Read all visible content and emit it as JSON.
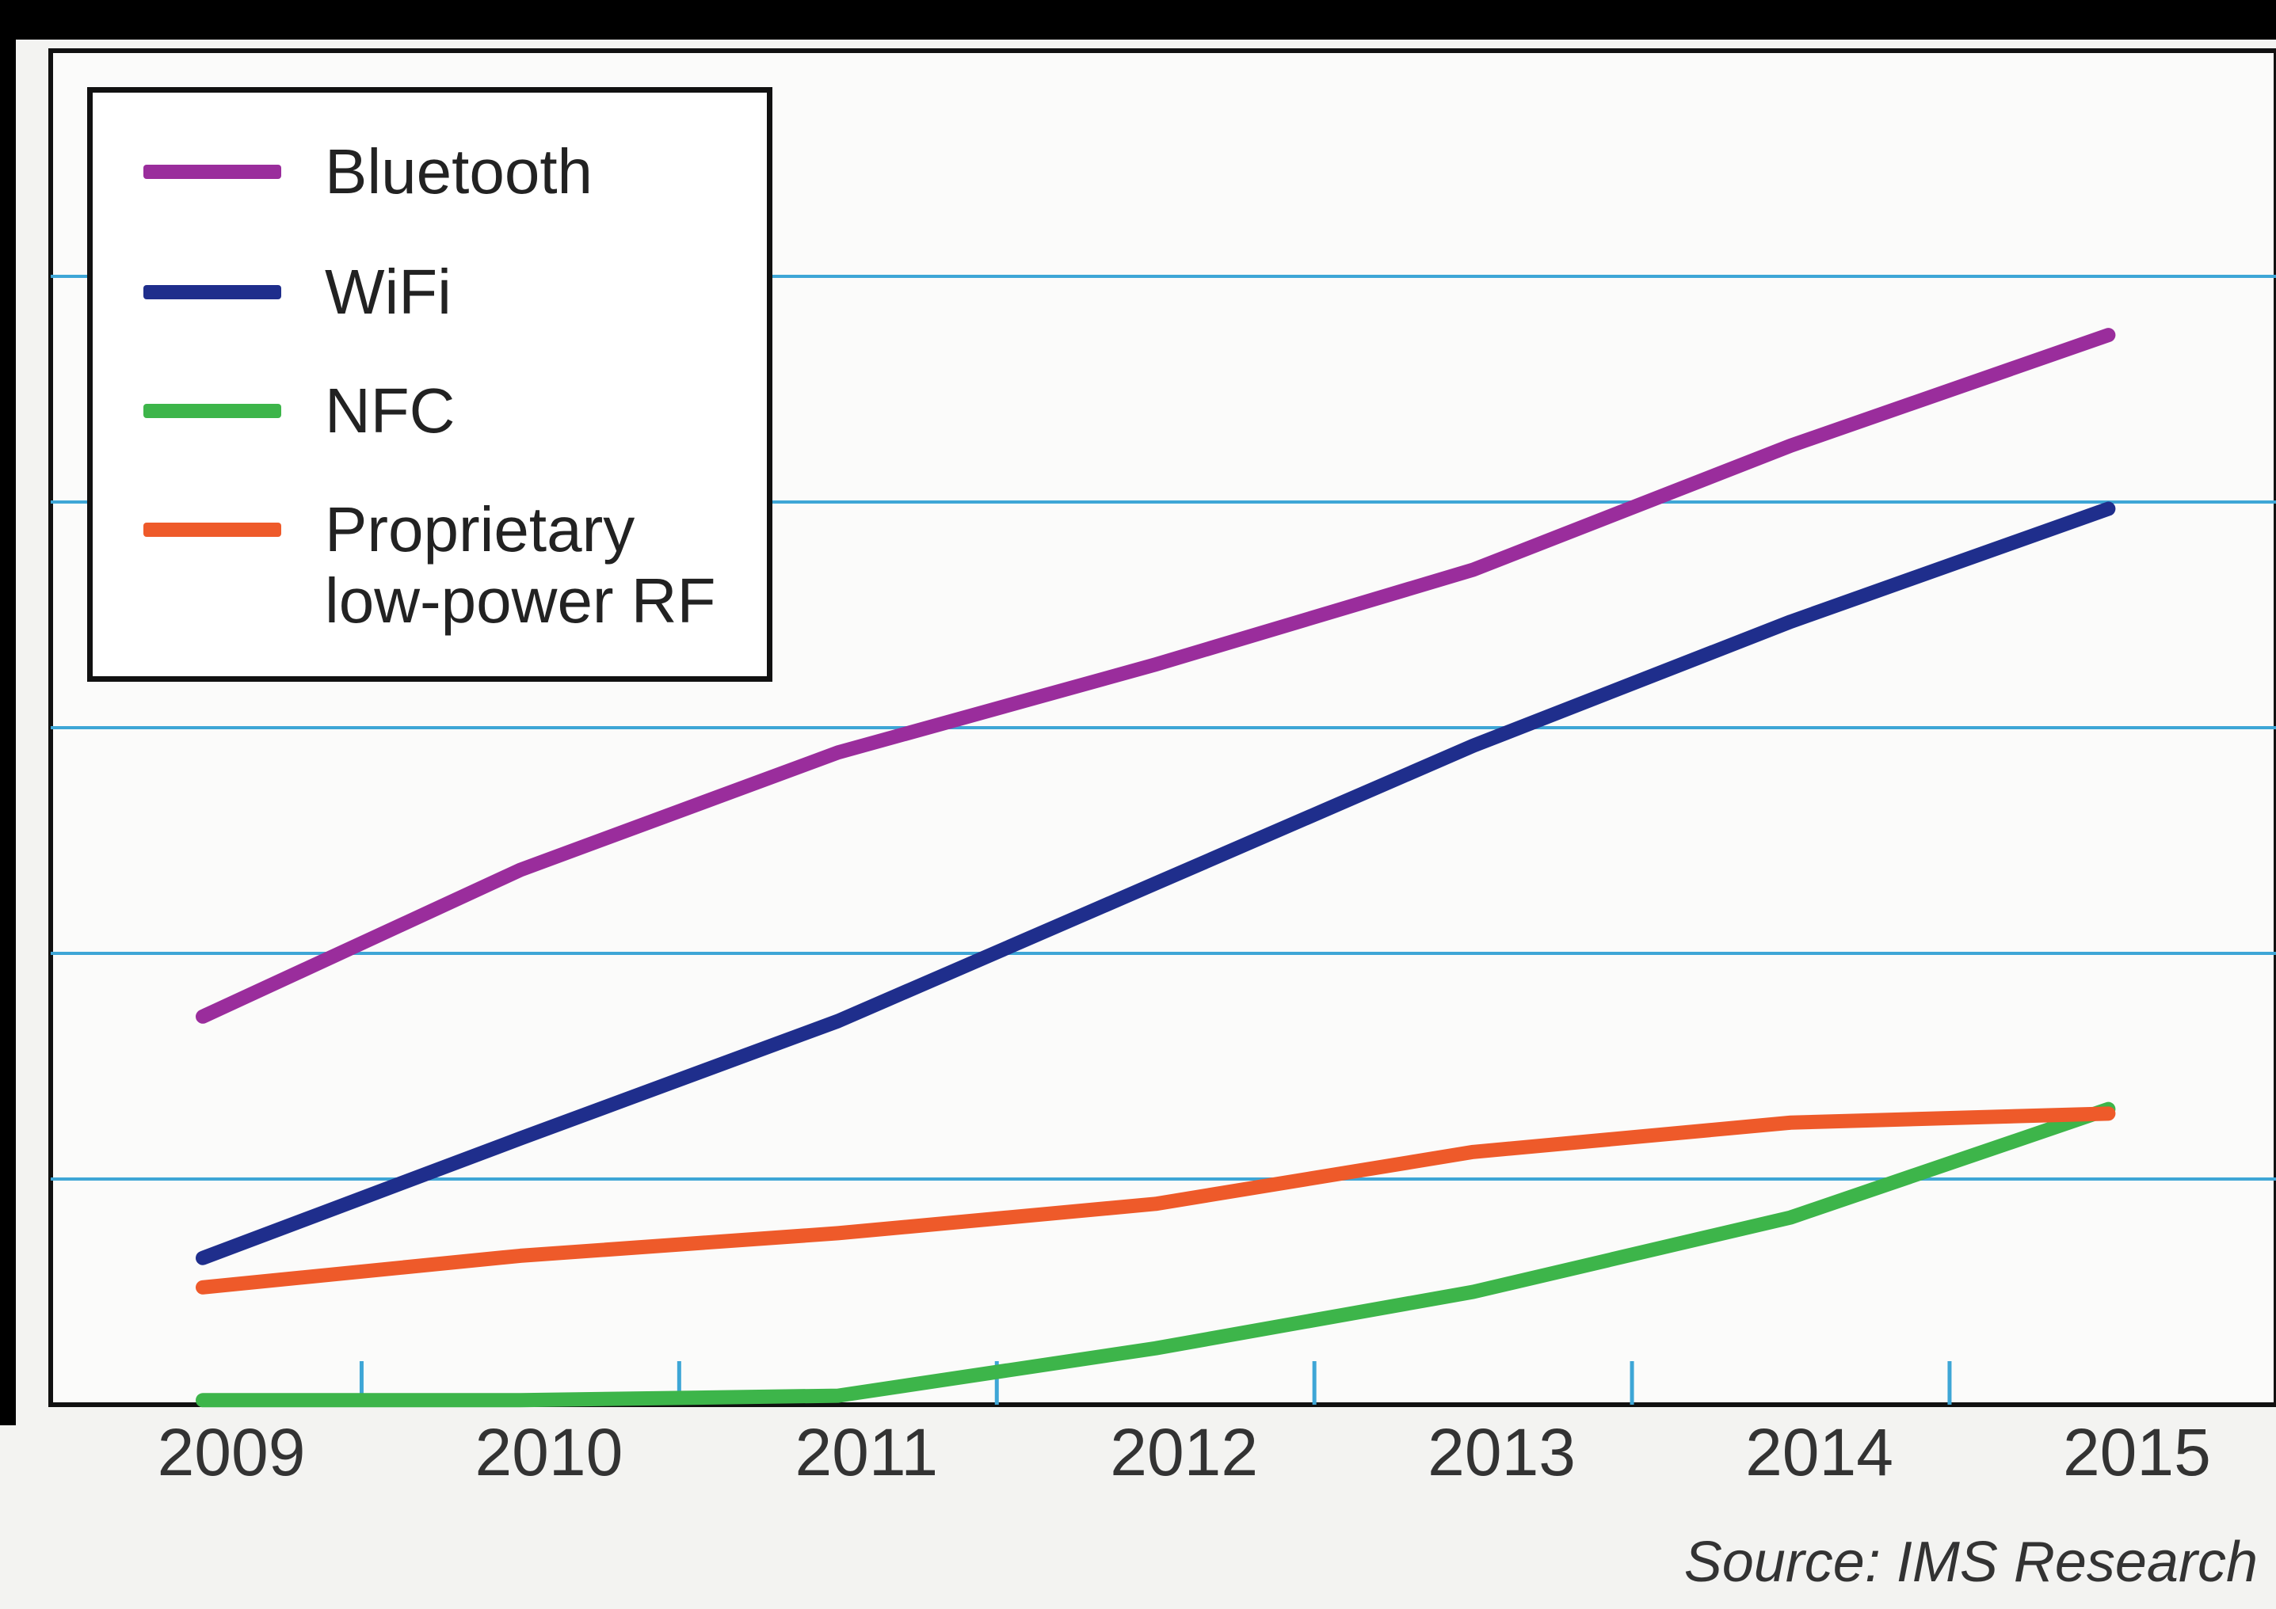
{
  "chart_data": {
    "type": "line",
    "categories": [
      "2009",
      "2010",
      "2011",
      "2012",
      "2013",
      "2014",
      "2015"
    ],
    "series": [
      {
        "name": "Bluetooth",
        "color": "#9a2d9c",
        "values": [
          1.72,
          2.37,
          2.89,
          3.28,
          3.7,
          4.25,
          4.74
        ]
      },
      {
        "name": "WiFi",
        "color": "#1f2e8c",
        "values": [
          0.65,
          1.18,
          1.7,
          2.31,
          2.92,
          3.47,
          3.97
        ]
      },
      {
        "name": "NFC",
        "color": "#3db54a",
        "values": [
          0.02,
          0.02,
          0.04,
          0.25,
          0.5,
          0.83,
          1.31
        ]
      },
      {
        "name": "Proprietary low-power RF",
        "color": "#ee5a2a",
        "values": [
          0.52,
          0.66,
          0.76,
          0.89,
          1.12,
          1.25,
          1.29
        ]
      }
    ],
    "ylim": [
      0,
      6
    ],
    "gridlines": [
      1,
      2,
      3,
      4,
      5
    ],
    "grid_color": "#3ea6d6",
    "source": "Source: IMS Research"
  }
}
